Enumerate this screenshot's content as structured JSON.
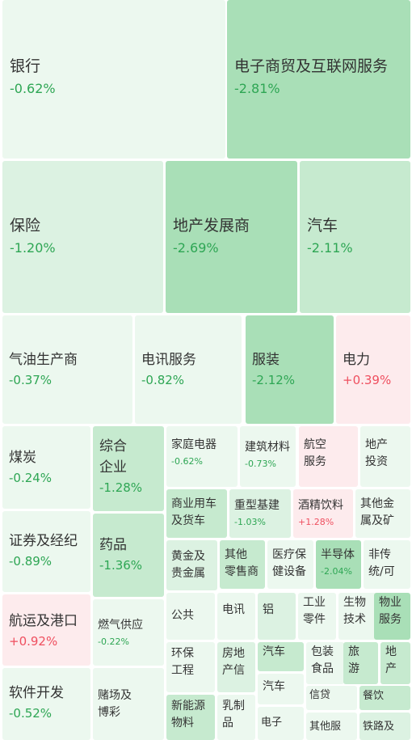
{
  "colors": {
    "up": "#ef4f5f",
    "down": "#2ea654",
    "fill_red_light": "#fdebed",
    "fill_green_0": "#ecf8ef",
    "fill_green_1": "#dcf2e2",
    "fill_green_2": "#c6eacf",
    "fill_green_3": "#a9dfb7"
  },
  "tiles": [
    {
      "name": "银行",
      "change": "-0.62%"
    },
    {
      "name": "电子商贸及互联网服务",
      "change": "-2.81%"
    },
    {
      "name": "保险",
      "change": "-1.20%"
    },
    {
      "name": "地产发展商",
      "change": "-2.69%"
    },
    {
      "name": "汽车",
      "change": "-2.11%"
    },
    {
      "name": "气油生产商",
      "change": "-0.37%"
    },
    {
      "name": "电讯服务",
      "change": "-0.82%"
    },
    {
      "name": "服装",
      "change": "-2.12%"
    },
    {
      "name": "电力",
      "change": "+0.39%"
    },
    {
      "name": "煤炭",
      "change": "-0.24%"
    },
    {
      "name": "综合\n企业",
      "change": "-1.28%"
    },
    {
      "name": "家庭电器",
      "change": "-0.62%"
    },
    {
      "name": "建筑材料",
      "change": "-0.73%"
    },
    {
      "name": "航空\n服务",
      "change": ""
    },
    {
      "name": "地产\n投资",
      "change": ""
    },
    {
      "name": "证券及经纪",
      "change": "-0.89%"
    },
    {
      "name": "药品",
      "change": "-1.36%"
    },
    {
      "name": "商业用车\n及货车",
      "change": ""
    },
    {
      "name": "重型基建",
      "change": "-1.03%"
    },
    {
      "name": "酒精饮料",
      "change": "+1.28%"
    },
    {
      "name": "其他金\n属及矿",
      "change": ""
    },
    {
      "name": "黄金及\n贵金属",
      "change": ""
    },
    {
      "name": "其他\n零售商",
      "change": ""
    },
    {
      "name": "医疗保\n健设备",
      "change": ""
    },
    {
      "name": "半导体",
      "change": "-2.04%"
    },
    {
      "name": "非传\n统/可",
      "change": ""
    },
    {
      "name": "航运及港口",
      "change": "+0.92%"
    },
    {
      "name": "燃气供应",
      "change": "-0.22%"
    },
    {
      "name": "公共",
      "change": ""
    },
    {
      "name": "电讯",
      "change": ""
    },
    {
      "name": "铝",
      "change": ""
    },
    {
      "name": "工业\n零件",
      "change": ""
    },
    {
      "name": "生物\n技术",
      "change": ""
    },
    {
      "name": "物业\n服务",
      "change": ""
    },
    {
      "name": "环保\n工程",
      "change": ""
    },
    {
      "name": "房地\n产信",
      "change": ""
    },
    {
      "name": "汽车",
      "change": ""
    },
    {
      "name": "包装\n食品",
      "change": ""
    },
    {
      "name": "旅\n游",
      "change": ""
    },
    {
      "name": "地\n产",
      "change": ""
    },
    {
      "name": "软件开发",
      "change": "-0.52%"
    },
    {
      "name": "赌场及\n博彩",
      "change": ""
    },
    {
      "name": "新能源\n物料",
      "change": ""
    },
    {
      "name": "乳制\n品",
      "change": ""
    },
    {
      "name": "汽车",
      "change": ""
    },
    {
      "name": "信贷",
      "change": ""
    },
    {
      "name": "餐饮",
      "change": ""
    },
    {
      "name": "电子",
      "change": ""
    },
    {
      "name": "其他服",
      "change": ""
    },
    {
      "name": "铁路及",
      "change": ""
    }
  ]
}
